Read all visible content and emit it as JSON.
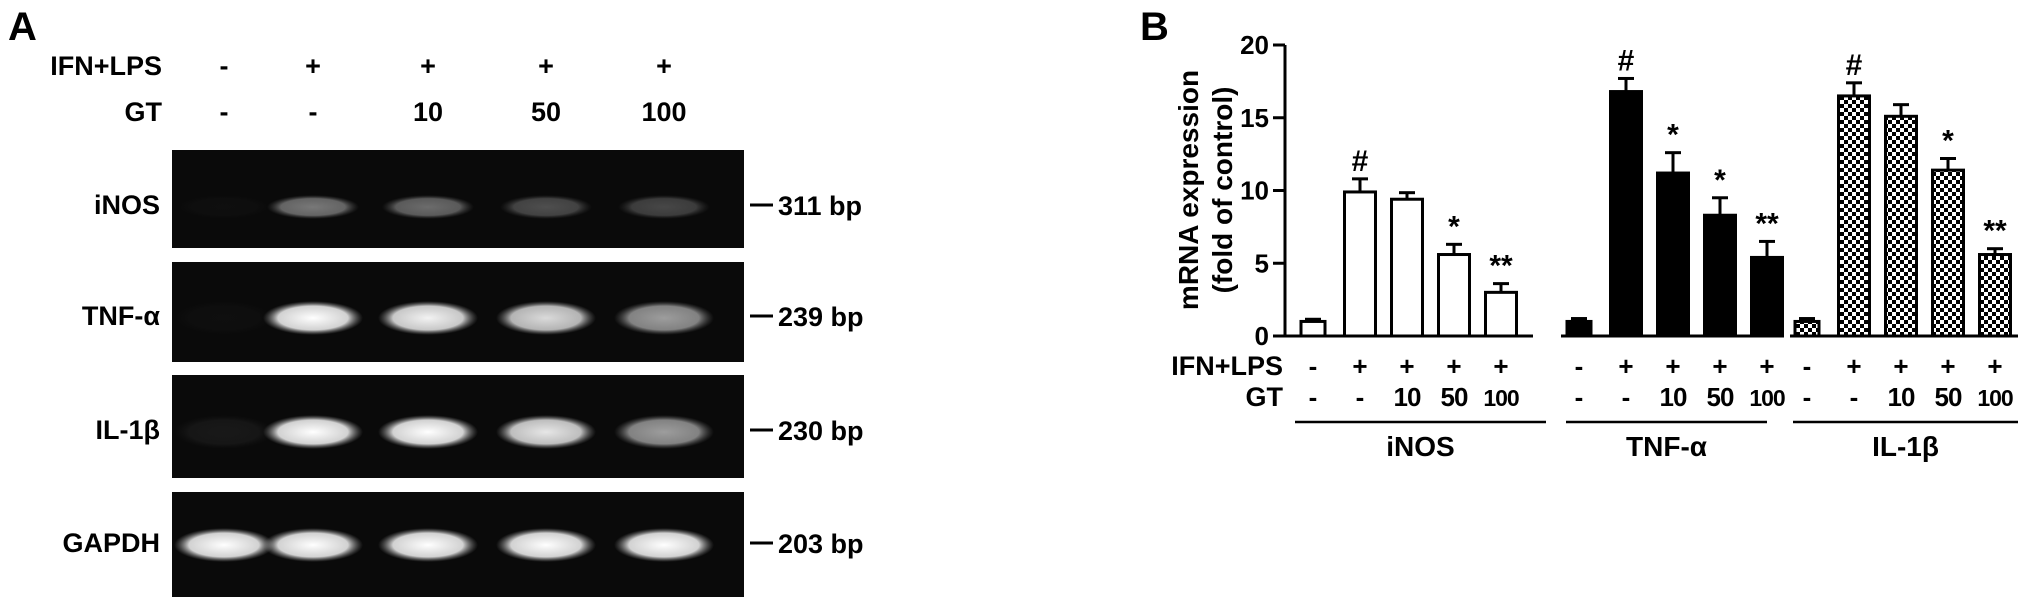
{
  "panel_a": {
    "label": "A",
    "treatments": {
      "ifn_label": "IFN+LPS",
      "gt_label": "GT",
      "ifn_signs": [
        "-",
        "+",
        "+",
        "+",
        "+"
      ],
      "gt_values": [
        "-",
        "-",
        "10",
        "50",
        "100"
      ]
    },
    "rows": [
      {
        "name": "iNOS",
        "size_label": "311 bp",
        "intensity": [
          0.02,
          0.45,
          0.4,
          0.28,
          0.25
        ]
      },
      {
        "name": "TNF-α",
        "size_label": "239 bp",
        "intensity": [
          0.02,
          1.0,
          0.95,
          0.85,
          0.6
        ]
      },
      {
        "name": "IL-1β",
        "size_label": "230 bp",
        "intensity": [
          0.06,
          1.0,
          1.0,
          0.9,
          0.6
        ]
      },
      {
        "name": "GAPDH",
        "size_label": "203 bp",
        "intensity": [
          1.0,
          1.0,
          1.0,
          1.0,
          1.0
        ]
      }
    ]
  },
  "chart_data": {
    "type": "bar",
    "panel_label": "B",
    "ylabel_line1": "mRNA expression",
    "ylabel_line2": "(fold of control)",
    "ylim": [
      0,
      20
    ],
    "yticks": [
      "0",
      "5",
      "10",
      "15",
      "20"
    ],
    "row_labels": {
      "ifn": "IFN+LPS",
      "gt": "GT"
    },
    "ifn_signs": [
      "-",
      "+",
      "+",
      "+",
      "+"
    ],
    "gt_values": [
      "-",
      "-",
      "10",
      "50",
      "100"
    ],
    "groups": [
      {
        "name": "iNOS",
        "fill": "white",
        "values": [
          1.0,
          9.9,
          9.4,
          5.6,
          3.0
        ],
        "errors": [
          0.15,
          0.9,
          0.45,
          0.7,
          0.6
        ],
        "marks": [
          "",
          "#",
          "",
          "*",
          "**"
        ]
      },
      {
        "name": "TNF-α",
        "fill": "black",
        "values": [
          1.0,
          16.8,
          11.2,
          8.3,
          5.4
        ],
        "errors": [
          0.2,
          0.9,
          1.4,
          1.2,
          1.1
        ],
        "marks": [
          "",
          "#",
          "*",
          "*",
          "**"
        ]
      },
      {
        "name": "IL-1β",
        "fill": "checkered",
        "values": [
          1.0,
          16.5,
          15.1,
          11.4,
          5.6
        ],
        "errors": [
          0.2,
          0.9,
          0.8,
          0.8,
          0.4
        ],
        "marks": [
          "",
          "#",
          "",
          "*",
          "**"
        ]
      }
    ],
    "colors": {
      "bar_outline": "#000000",
      "bar_black": "#000000",
      "bar_white": "#ffffff"
    }
  }
}
